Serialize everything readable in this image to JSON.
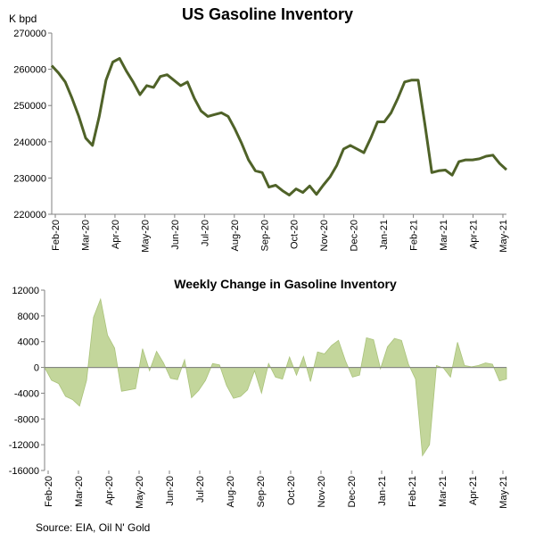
{
  "chart_data": [
    {
      "type": "line",
      "title": "US Gasoline Inventory",
      "ylabel": "K bpd",
      "ylim": [
        220000,
        270000
      ],
      "yticks": [
        220000,
        230000,
        240000,
        250000,
        260000,
        270000
      ],
      "ytick_labels": [
        "220000",
        "230000",
        "240000",
        "250000",
        "260000",
        "270000"
      ],
      "xlabels": [
        "Feb-20",
        "Mar-20",
        "Apr-20",
        "May-20",
        "Jun-20",
        "Jul-20",
        "Aug-20",
        "Sep-20",
        "Oct-20",
        "Nov-20",
        "Dec-20",
        "Jan-21",
        "Feb-21",
        "Mar-21",
        "Apr-21",
        "May-21"
      ],
      "color": "#4f6228",
      "grid": false,
      "values": [
        261000,
        259000,
        256500,
        252000,
        247000,
        241000,
        239000,
        247000,
        257000,
        262000,
        263000,
        259500,
        256500,
        253000,
        255500,
        255000,
        258000,
        258500,
        257000,
        255500,
        256500,
        252000,
        248500,
        247000,
        247500,
        248000,
        247000,
        243500,
        239500,
        235000,
        232000,
        231500,
        227500,
        228000,
        226500,
        225300,
        227000,
        226000,
        227800,
        225500,
        228000,
        230300,
        233500,
        238000,
        239000,
        238000,
        237000,
        241000,
        245500,
        245500,
        248000,
        252000,
        256500,
        257000,
        257000,
        244500,
        231500,
        232000,
        232200,
        230800,
        234500,
        235000,
        235000,
        235300,
        236000,
        236300,
        234000,
        232300
      ]
    },
    {
      "type": "area",
      "title": "Weekly Change in Gasoline Inventory",
      "ylim": [
        -16000,
        12000
      ],
      "yticks": [
        -16000,
        -12000,
        -8000,
        -4000,
        0,
        4000,
        8000,
        12000
      ],
      "ytick_labels": [
        "-16000",
        "-12000",
        "-8000",
        "-4000",
        "0",
        "4000",
        "8000",
        "12000"
      ],
      "xlabels": [
        "Feb-20",
        "Mar-20",
        "Apr-20",
        "May-20",
        "Jun-20",
        "Jul-20",
        "Aug-20",
        "Sep-20",
        "Oct-20",
        "Nov-20",
        "Dec-20",
        "Jan-21",
        "Feb-21",
        "Mar-21",
        "Apr-21",
        "May-21"
      ],
      "color": "#c3d69b",
      "grid": false,
      "values": [
        0,
        -2000,
        -2500,
        -4500,
        -5000,
        -6000,
        -2000,
        7800,
        10600,
        5000,
        3000,
        -3700,
        -3500,
        -3300,
        2900,
        -500,
        2500,
        700,
        -1700,
        -1900,
        1200,
        -4700,
        -3600,
        -2000,
        600,
        400,
        -2800,
        -4800,
        -4500,
        -3500,
        -500,
        -4000,
        600,
        -1500,
        -1800,
        1600,
        -1200,
        1700,
        -2200,
        2400,
        2100,
        3400,
        4200,
        1000,
        -1500,
        -1200,
        4600,
        4300,
        -200,
        3200,
        4500,
        4200,
        500,
        -1800,
        -13700,
        -12000,
        300,
        -100,
        -1500,
        3900,
        300,
        100,
        300,
        700,
        500,
        -2100,
        -1800
      ]
    }
  ],
  "source": "Source: EIA, Oil N' Gold"
}
